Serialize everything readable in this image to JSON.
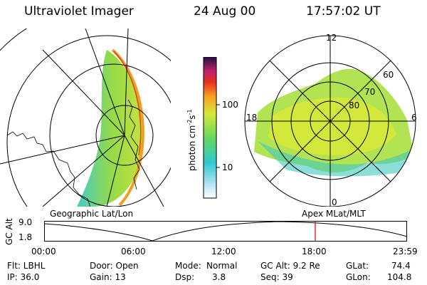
{
  "header": {
    "title": "Ultraviolet Imager",
    "date": "24 Aug 00",
    "time": "17:57:02 UT"
  },
  "colorbar": {
    "label": "photon cm",
    "label_sup1": "-2",
    "label_mid": "s",
    "label_sup2": "-1",
    "ticks": [
      "100",
      "10"
    ]
  },
  "left_panel": {
    "caption": "Geographic Lat/Lon"
  },
  "right_panel": {
    "caption": "Apex MLat/MLT",
    "mlt_labels": {
      "top": "12",
      "left": "18",
      "right": "6",
      "bottom": "0"
    },
    "lat_labels": [
      "60",
      "70",
      "80"
    ]
  },
  "altitude_plot": {
    "ylabel": "GC Alt",
    "y_ticks": [
      "9.0",
      "1.8"
    ],
    "x_ticks": [
      "00:00",
      "06:00",
      "12:00",
      "18:00",
      "23:59"
    ],
    "marker_color": "#cc0000"
  },
  "info": {
    "filter": "Flt: LBHL",
    "ip": "IP: 36.0",
    "door": "Door: Open",
    "gain": "Gain: 13",
    "mode_label": "Mode:",
    "mode_value": "Normal",
    "dsp_label": "Dsp:",
    "dsp_value": "3.8",
    "gcalt": "GC Alt: 9.2 Re",
    "seq": "Seq: 39",
    "glat_label": "GLat:",
    "glat_value": "74.4",
    "glon_label": "GLon:",
    "glon_value": "104.8"
  }
}
